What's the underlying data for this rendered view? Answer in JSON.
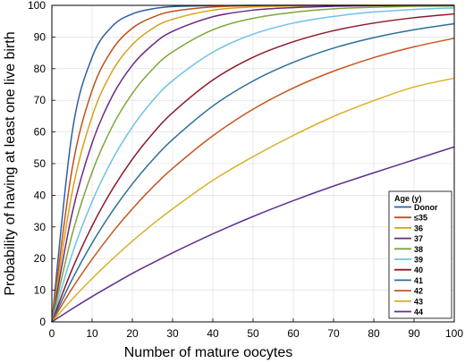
{
  "chart_data": {
    "type": "line",
    "title": "",
    "xlabel": "Number of mature oocytes",
    "ylabel": "Probability of having at least one live birth",
    "xlim": [
      0,
      100
    ],
    "ylim": [
      0,
      100
    ],
    "x_ticks": [
      "0",
      "10",
      "20",
      "30",
      "40",
      "50",
      "60",
      "70",
      "80",
      "90",
      "100"
    ],
    "y_ticks": [
      "0",
      "10",
      "20",
      "30",
      "40",
      "50",
      "60",
      "70",
      "80",
      "90",
      "100"
    ],
    "grid": true,
    "legend": {
      "title": "Age (y)",
      "placement": "bottom-right"
    },
    "x": [
      0,
      5,
      10,
      15,
      20,
      25,
      30,
      40,
      50,
      60,
      70,
      80,
      90,
      100
    ],
    "series": [
      {
        "name": "Donor",
        "color": "#2e5fa3",
        "values": [
          0,
          59.5,
          83.6,
          93.4,
          97.3,
          98.9,
          99.6,
          99.9,
          100,
          100,
          100,
          100,
          100,
          100
        ]
      },
      {
        "name": "≤35",
        "color": "#c0511d",
        "values": [
          0,
          48.1,
          73.1,
          86.0,
          92.8,
          96.2,
          98.1,
          99.5,
          99.9,
          100,
          100,
          100,
          100,
          100
        ]
      },
      {
        "name": "36",
        "color": "#d6a21b",
        "values": [
          0,
          40.7,
          64.9,
          79.2,
          87.6,
          92.7,
          95.6,
          98.5,
          99.5,
          99.8,
          99.9,
          100,
          100,
          100
        ]
      },
      {
        "name": "37",
        "color": "#6b2a82",
        "values": [
          0,
          34.1,
          56.5,
          71.3,
          81.1,
          87.5,
          91.8,
          96.4,
          98.5,
          99.3,
          99.7,
          99.9,
          100,
          100
        ]
      },
      {
        "name": "38",
        "color": "#7ea63a",
        "values": [
          0,
          27.4,
          47.3,
          61.7,
          72.2,
          79.8,
          85.3,
          92.3,
          95.9,
          97.8,
          98.9,
          99.4,
          99.7,
          99.8
        ]
      },
      {
        "name": "39",
        "color": "#6fc1e6",
        "values": [
          0,
          21.3,
          38.0,
          51.2,
          61.6,
          69.8,
          76.2,
          85.2,
          90.9,
          94.4,
          96.5,
          97.9,
          98.7,
          99.2
        ]
      },
      {
        "name": "40",
        "color": "#8b1a2b",
        "values": [
          0,
          16.5,
          30.3,
          41.8,
          51.4,
          59.4,
          66.1,
          76.4,
          83.6,
          88.5,
          92.0,
          94.4,
          96.1,
          97.3
        ]
      },
      {
        "name": "41",
        "color": "#2d6f98",
        "values": [
          0,
          13.3,
          24.9,
          34.9,
          43.6,
          51.1,
          57.6,
          68.2,
          76.1,
          82.0,
          86.5,
          89.8,
          92.3,
          94.2
        ]
      },
      {
        "name": "42",
        "color": "#c7561f",
        "values": [
          0,
          10.5,
          19.8,
          28.2,
          35.7,
          42.5,
          48.5,
          58.8,
          67.2,
          73.9,
          79.2,
          83.5,
          86.9,
          89.6
        ]
      },
      {
        "name": "43",
        "color": "#d8b12a",
        "values": [
          0,
          7.1,
          13.7,
          19.8,
          25.5,
          30.8,
          35.7,
          44.7,
          52.2,
          58.9,
          64.9,
          69.9,
          74.2,
          77.0
        ]
      },
      {
        "name": "44",
        "color": "#5e3090",
        "values": [
          0,
          4.1,
          8.0,
          11.7,
          15.3,
          18.6,
          21.8,
          27.8,
          33.3,
          38.3,
          42.9,
          47.1,
          51.2,
          55.3
        ]
      }
    ]
  }
}
